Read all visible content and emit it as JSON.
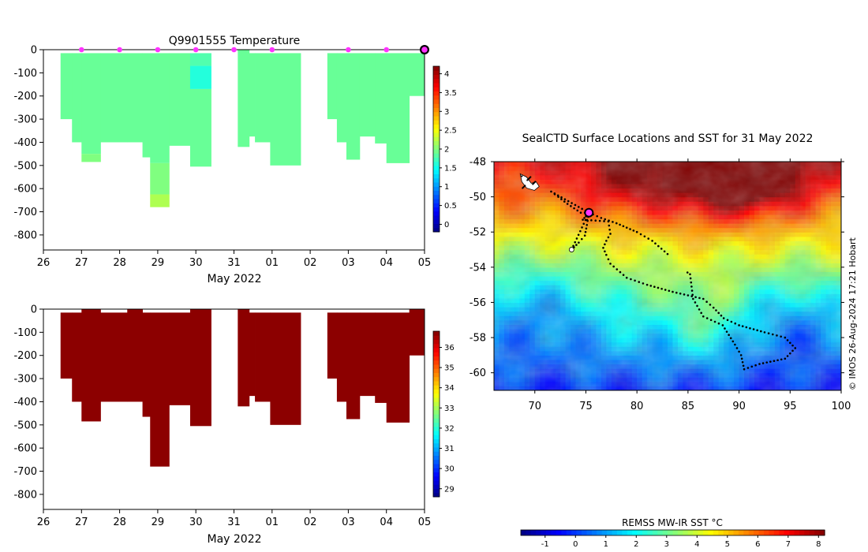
{
  "chart_data": [
    {
      "type": "heatmap",
      "id": "temperature",
      "title": "Q9901555  Temperature",
      "xlabel": "May 2022",
      "ylabel": "",
      "x_ticks": [
        "26",
        "27",
        "28",
        "29",
        "30",
        "31",
        "01",
        "02",
        "03",
        "04",
        "05"
      ],
      "x_range_days": [
        26,
        36
      ],
      "y_ticks": [
        0,
        -100,
        -200,
        -300,
        -400,
        -500,
        -600,
        -700,
        -800
      ],
      "ylim": [
        -865,
        0
      ],
      "colorbar_ticks": [
        0,
        0.5,
        1,
        1.5,
        2,
        2.5,
        3,
        3.5,
        4
      ],
      "colorbar_range": [
        -0.2,
        4.2
      ],
      "profile_markers_day": [
        27.0,
        28.0,
        29.0,
        30.0,
        31.0,
        32.0,
        34.0,
        35.0
      ],
      "latest_marker_day": 36.0,
      "profiles": [
        {
          "x0": 26.45,
          "x1": 26.75,
          "bottom": -300,
          "layers": [
            {
              "top": -15,
              "bottom": -300,
              "value": 1.9
            }
          ]
        },
        {
          "x0": 26.75,
          "x1": 27.0,
          "bottom": -400,
          "layers": [
            {
              "top": -15,
              "bottom": -400,
              "value": 1.9
            }
          ]
        },
        {
          "x0": 27.0,
          "x1": 27.5,
          "bottom": -485,
          "layers": [
            {
              "top": -15,
              "bottom": -450,
              "value": 1.9
            },
            {
              "top": -450,
              "bottom": -485,
              "value": 2.0
            }
          ]
        },
        {
          "x0": 27.5,
          "x1": 28.2,
          "bottom": -400,
          "layers": [
            {
              "top": -15,
              "bottom": -400,
              "value": 1.9
            }
          ]
        },
        {
          "x0": 28.2,
          "x1": 28.6,
          "bottom": -400,
          "layers": [
            {
              "top": -15,
              "bottom": -400,
              "value": 1.9
            }
          ]
        },
        {
          "x0": 28.6,
          "x1": 28.8,
          "bottom": -465,
          "layers": [
            {
              "top": -15,
              "bottom": -465,
              "value": 1.9
            }
          ]
        },
        {
          "x0": 28.8,
          "x1": 29.3,
          "bottom": -680,
          "layers": [
            {
              "top": -15,
              "bottom": -490,
              "value": 1.9
            },
            {
              "top": -490,
              "bottom": -625,
              "value": 2.0
            },
            {
              "top": -625,
              "bottom": -680,
              "value": 2.2
            }
          ]
        },
        {
          "x0": 29.3,
          "x1": 29.85,
          "bottom": -415,
          "layers": [
            {
              "top": -15,
              "bottom": -415,
              "value": 1.9
            }
          ]
        },
        {
          "x0": 29.85,
          "x1": 30.4,
          "bottom": -505,
          "layers": [
            {
              "top": -15,
              "bottom": -70,
              "value": 1.8
            },
            {
              "top": -70,
              "bottom": -170,
              "value": 1.6
            },
            {
              "top": -170,
              "bottom": -505,
              "value": 1.9
            }
          ]
        },
        {
          "x0": 31.1,
          "x1": 31.4,
          "bottom": -420,
          "layers": [
            {
              "top": 0,
              "bottom": -420,
              "value": 1.9
            }
          ]
        },
        {
          "x0": 31.4,
          "x1": 31.55,
          "bottom": -375,
          "layers": [
            {
              "top": -15,
              "bottom": -375,
              "value": 1.9
            }
          ]
        },
        {
          "x0": 31.55,
          "x1": 31.95,
          "bottom": -400,
          "layers": [
            {
              "top": -15,
              "bottom": -400,
              "value": 1.9
            }
          ]
        },
        {
          "x0": 31.95,
          "x1": 32.75,
          "bottom": -500,
          "layers": [
            {
              "top": -15,
              "bottom": -500,
              "value": 1.9
            }
          ]
        },
        {
          "x0": 33.45,
          "x1": 33.7,
          "bottom": -300,
          "layers": [
            {
              "top": -15,
              "bottom": -300,
              "value": 1.9
            }
          ]
        },
        {
          "x0": 33.7,
          "x1": 33.95,
          "bottom": -400,
          "layers": [
            {
              "top": -15,
              "bottom": -400,
              "value": 1.9
            }
          ]
        },
        {
          "x0": 33.95,
          "x1": 34.3,
          "bottom": -475,
          "layers": [
            {
              "top": -15,
              "bottom": -475,
              "value": 1.9
            }
          ]
        },
        {
          "x0": 34.3,
          "x1": 34.7,
          "bottom": -375,
          "layers": [
            {
              "top": -15,
              "bottom": -375,
              "value": 1.9
            }
          ]
        },
        {
          "x0": 34.7,
          "x1": 35.0,
          "bottom": -405,
          "layers": [
            {
              "top": -15,
              "bottom": -405,
              "value": 1.9
            }
          ]
        },
        {
          "x0": 35.0,
          "x1": 35.6,
          "bottom": -490,
          "layers": [
            {
              "top": -15,
              "bottom": -490,
              "value": 1.9
            }
          ]
        },
        {
          "x0": 35.6,
          "x1": 36.05,
          "bottom": -200,
          "layers": [
            {
              "top": -15,
              "bottom": -200,
              "value": 1.9
            }
          ]
        }
      ]
    },
    {
      "type": "heatmap",
      "id": "salinity",
      "title": "",
      "xlabel": "May 2022",
      "ylabel": "",
      "x_ticks": [
        "26",
        "27",
        "28",
        "29",
        "30",
        "31",
        "01",
        "02",
        "03",
        "04",
        "05"
      ],
      "x_range_days": [
        26,
        36
      ],
      "y_ticks": [
        0,
        -100,
        -200,
        -300,
        -400,
        -500,
        -600,
        -700,
        -800
      ],
      "ylim": [
        -865,
        0
      ],
      "colorbar_ticks": [
        29,
        30,
        31,
        32,
        33,
        34,
        35,
        36
      ],
      "colorbar_range": [
        28.6,
        36.8
      ],
      "fill_value": 36.7,
      "profiles": [
        {
          "x0": 26.45,
          "x1": 26.75,
          "top": -15,
          "bottom": -300
        },
        {
          "x0": 26.75,
          "x1": 27.0,
          "top": -15,
          "bottom": -400
        },
        {
          "x0": 27.0,
          "x1": 27.5,
          "top": 0,
          "bottom": -485
        },
        {
          "x0": 27.5,
          "x1": 28.2,
          "top": -15,
          "bottom": -400
        },
        {
          "x0": 28.2,
          "x1": 28.6,
          "top": 0,
          "bottom": -400
        },
        {
          "x0": 28.6,
          "x1": 28.8,
          "top": -15,
          "bottom": -465
        },
        {
          "x0": 28.8,
          "x1": 29.3,
          "top": -15,
          "bottom": -680
        },
        {
          "x0": 29.3,
          "x1": 29.85,
          "top": -15,
          "bottom": -415
        },
        {
          "x0": 29.85,
          "x1": 30.4,
          "top": 0,
          "bottom": -505
        },
        {
          "x0": 31.1,
          "x1": 31.4,
          "top": 0,
          "bottom": -420
        },
        {
          "x0": 31.4,
          "x1": 31.55,
          "top": -15,
          "bottom": -375
        },
        {
          "x0": 31.55,
          "x1": 31.95,
          "top": -15,
          "bottom": -400
        },
        {
          "x0": 31.95,
          "x1": 32.75,
          "top": -15,
          "bottom": -500
        },
        {
          "x0": 33.45,
          "x1": 33.7,
          "top": -15,
          "bottom": -300
        },
        {
          "x0": 33.7,
          "x1": 33.95,
          "top": -15,
          "bottom": -400
        },
        {
          "x0": 33.95,
          "x1": 34.3,
          "top": -15,
          "bottom": -475
        },
        {
          "x0": 34.3,
          "x1": 34.7,
          "top": -15,
          "bottom": -375
        },
        {
          "x0": 34.7,
          "x1": 35.0,
          "top": -15,
          "bottom": -405
        },
        {
          "x0": 35.0,
          "x1": 35.6,
          "top": -15,
          "bottom": -490
        },
        {
          "x0": 35.6,
          "x1": 36.05,
          "top": 0,
          "bottom": -200
        }
      ]
    },
    {
      "type": "map",
      "id": "sst_map",
      "title": "SealCTD Surface Locations and SST for 31 May 2022",
      "x_ticks": [
        70,
        75,
        80,
        85,
        90,
        95,
        100
      ],
      "y_ticks": [
        -48,
        -50,
        -52,
        -54,
        -56,
        -58,
        -60
      ],
      "lon_range": [
        66,
        100
      ],
      "lat_range": [
        -61,
        -48
      ],
      "colorbar_title": "REMSS MW-IR SST °C",
      "colorbar_ticks": [
        -1,
        0,
        1,
        2,
        3,
        4,
        5,
        6,
        7,
        8
      ],
      "colorbar_range": [
        -1.8,
        8.2
      ],
      "credit": "© IMOS 26-Aug-2024 17:21 Hobart",
      "current_position": {
        "lon": 75.3,
        "lat": -50.9
      },
      "track": [
        [
          75.3,
          -50.9
        ],
        [
          75.1,
          -51.6
        ],
        [
          74.9,
          -52.2
        ],
        [
          74.3,
          -52.6
        ],
        [
          73.6,
          -53.0
        ],
        [
          75.3,
          -50.9
        ],
        [
          76.5,
          -51.2
        ],
        [
          78.0,
          -51.5
        ],
        [
          80.0,
          -52.0
        ],
        [
          81.5,
          -52.5
        ],
        [
          83.3,
          -53.4
        ],
        [
          75.3,
          -50.9
        ],
        [
          74.5,
          -50.9
        ],
        [
          73.2,
          -50.4
        ],
        [
          72.3,
          -50.0
        ],
        [
          71.6,
          -49.7
        ],
        [
          75.3,
          -50.9
        ],
        [
          75.0,
          -51.1
        ],
        [
          74.7,
          -51.3
        ],
        [
          77.2,
          -51.4
        ],
        [
          77.4,
          -52.1
        ],
        [
          77.0,
          -52.5
        ],
        [
          76.7,
          -52.9
        ],
        [
          77.0,
          -53.3
        ],
        [
          77.4,
          -53.8
        ],
        [
          79.0,
          -54.6
        ],
        [
          81.0,
          -55.0
        ],
        [
          83.5,
          -55.4
        ],
        [
          85.0,
          -55.6
        ],
        [
          86.5,
          -55.8
        ],
        [
          87.5,
          -56.3
        ],
        [
          88.5,
          -56.9
        ],
        [
          90.0,
          -57.3
        ],
        [
          92.5,
          -57.7
        ],
        [
          94.5,
          -58.0
        ],
        [
          95.5,
          -58.6
        ],
        [
          94.5,
          -59.2
        ],
        [
          92.0,
          -59.5
        ],
        [
          90.5,
          -59.8
        ],
        [
          90.2,
          -59.0
        ],
        [
          89.6,
          -58.4
        ],
        [
          88.4,
          -57.3
        ],
        [
          86.5,
          -56.8
        ],
        [
          85.5,
          -55.8
        ],
        [
          85.2,
          -54.4
        ],
        [
          84.7,
          -54.2
        ]
      ],
      "start_cluster": {
        "lon": 69.5,
        "lat": -49.5
      }
    }
  ]
}
